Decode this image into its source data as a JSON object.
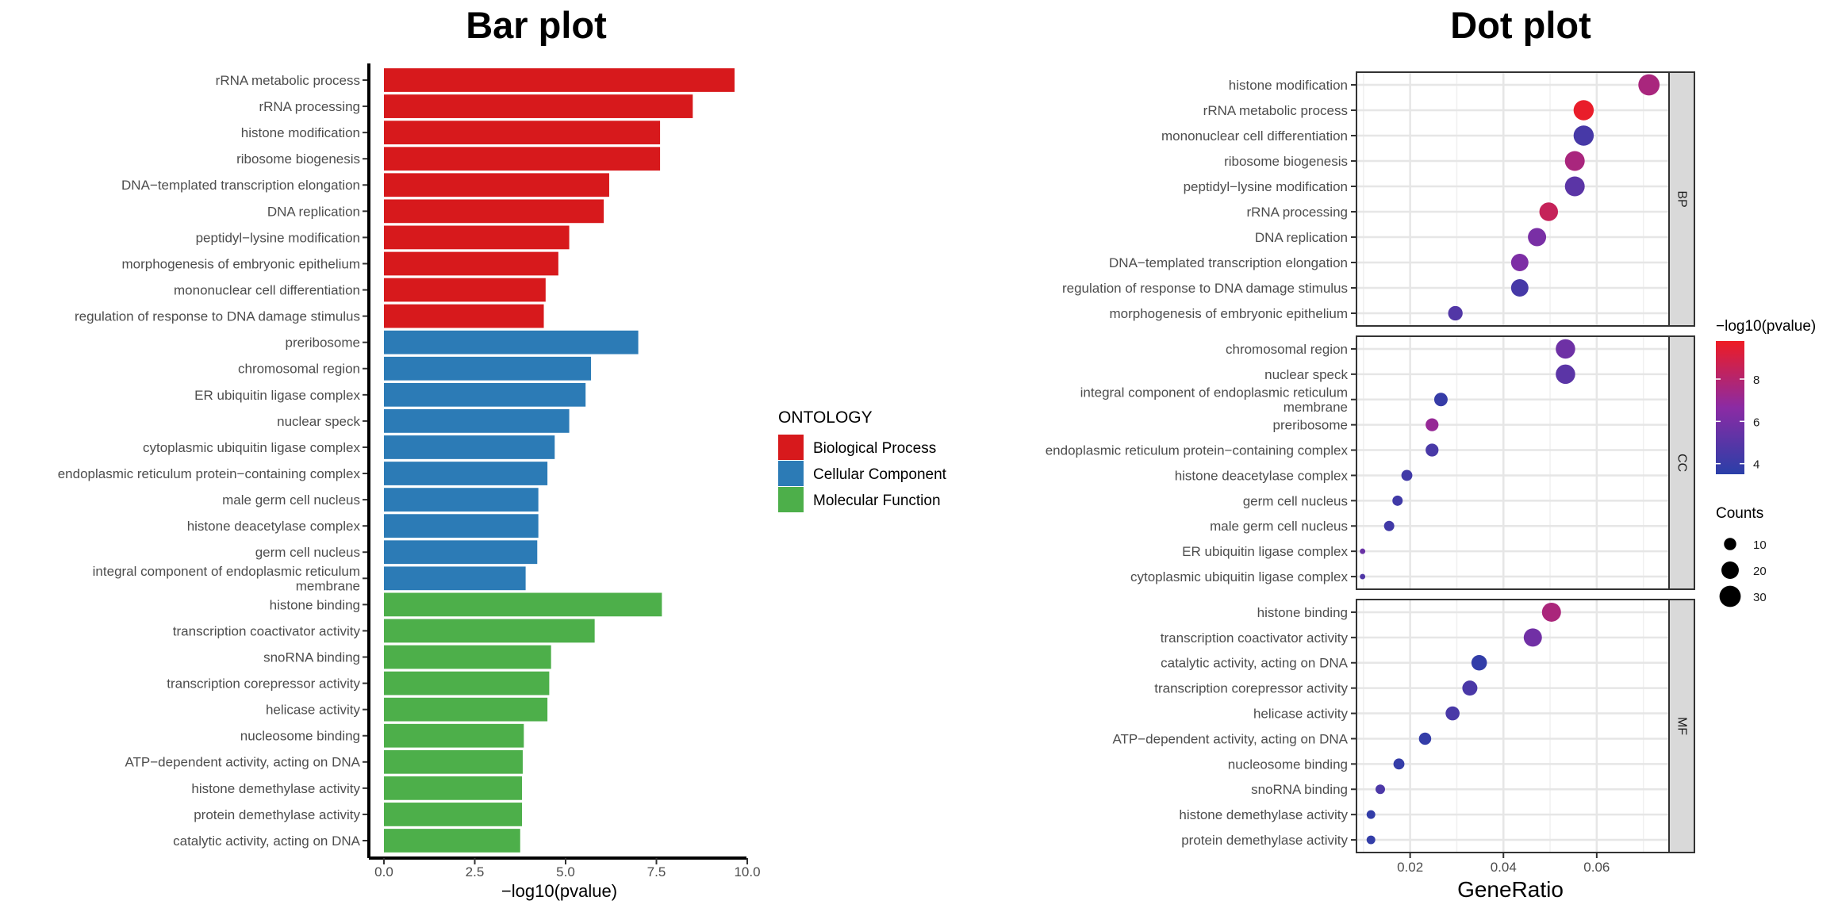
{
  "chart_data": [
    {
      "type": "bar",
      "orientation": "horizontal",
      "title": "Bar plot",
      "xlabel": "−log10(pvalue)",
      "ylabel": "",
      "xlim": [
        0,
        10
      ],
      "xticks": [
        "0.0",
        "2.5",
        "5.0",
        "7.5",
        "10.0"
      ],
      "legend": {
        "title": "ONTOLOGY",
        "placement": "right",
        "items": [
          {
            "name": "Biological Process",
            "color": "#D7191C"
          },
          {
            "name": "Cellular Component",
            "color": "#2C7BB6"
          },
          {
            "name": "Molecular Function",
            "color": "#4DAF4A"
          }
        ]
      },
      "series": [
        {
          "name": "Biological Process",
          "color": "#D7191C",
          "bars": [
            {
              "label": "rRNA metabolic process",
              "value": 9.65
            },
            {
              "label": "rRNA processing",
              "value": 8.5
            },
            {
              "label": "histone modification",
              "value": 7.6
            },
            {
              "label": "ribosome biogenesis",
              "value": 7.6
            },
            {
              "label": "DNA−templated transcription elongation",
              "value": 6.2
            },
            {
              "label": "DNA replication",
              "value": 6.05
            },
            {
              "label": "peptidyl−lysine modification",
              "value": 5.1
            },
            {
              "label": "morphogenesis of embryonic epithelium",
              "value": 4.8
            },
            {
              "label": "mononuclear cell differentiation",
              "value": 4.45
            },
            {
              "label": "regulation of response to DNA damage stimulus",
              "value": 4.4
            }
          ]
        },
        {
          "name": "Cellular Component",
          "color": "#2C7BB6",
          "bars": [
            {
              "label": "preribosome",
              "value": 7.0
            },
            {
              "label": "chromosomal region",
              "value": 5.7
            },
            {
              "label": "ER ubiquitin ligase complex",
              "value": 5.55
            },
            {
              "label": "nuclear speck",
              "value": 5.1
            },
            {
              "label": "cytoplasmic ubiquitin ligase complex",
              "value": 4.7
            },
            {
              "label": "endoplasmic reticulum protein−containing complex",
              "value": 4.5
            },
            {
              "label": "male germ cell nucleus",
              "value": 4.25
            },
            {
              "label": "histone deacetylase complex",
              "value": 4.25
            },
            {
              "label": "germ cell nucleus",
              "value": 4.22
            },
            {
              "label": "integral component of endoplasmic reticulum membrane",
              "value": 3.9
            }
          ]
        },
        {
          "name": "Molecular Function",
          "color": "#4DAF4A",
          "bars": [
            {
              "label": "histone binding",
              "value": 7.65
            },
            {
              "label": "transcription coactivator activity",
              "value": 5.8
            },
            {
              "label": "snoRNA binding",
              "value": 4.6
            },
            {
              "label": "transcription corepressor activity",
              "value": 4.55
            },
            {
              "label": "helicase activity",
              "value": 4.5
            },
            {
              "label": "nucleosome binding",
              "value": 3.85
            },
            {
              "label": "ATP−dependent activity, acting on DNA",
              "value": 3.82
            },
            {
              "label": "histone demethylase activity",
              "value": 3.8
            },
            {
              "label": "protein demethylase activity",
              "value": 3.8
            },
            {
              "label": "catalytic activity, acting on DNA",
              "value": 3.75
            }
          ]
        }
      ]
    },
    {
      "type": "scatter",
      "title": "Dot plot",
      "xlabel": "GeneRatio",
      "ylabel": "",
      "xlim": [
        0.0085,
        0.0755
      ],
      "xticks": [
        0.02,
        0.04,
        0.06
      ],
      "xtick_labels": [
        "0.02",
        "0.04",
        "0.06"
      ],
      "grid": true,
      "color_legend": {
        "title": "−log10(pvalue)",
        "range": [
          3.5,
          9.8
        ],
        "ticks": [
          "8",
          "6",
          "4"
        ],
        "low_color": "#2A3FA8",
        "mid_color": "#8B2BA4",
        "high_color": "#EE1C24"
      },
      "size_legend": {
        "title": "Counts",
        "ticks": [
          "10",
          "20",
          "30"
        ]
      },
      "facets": [
        {
          "name": "BP",
          "points": [
            {
              "label": "histone modification",
              "x": 0.0712,
              "count": 30,
              "pvalue_log": 7.6
            },
            {
              "label": "rRNA metabolic process",
              "x": 0.0572,
              "count": 27,
              "pvalue_log": 9.65
            },
            {
              "label": "mononuclear cell differentiation",
              "x": 0.0572,
              "count": 27,
              "pvalue_log": 4.45
            },
            {
              "label": "ribosome biogenesis",
              "x": 0.0553,
              "count": 26,
              "pvalue_log": 7.6
            },
            {
              "label": "peptidyl−lysine modification",
              "x": 0.0553,
              "count": 26,
              "pvalue_log": 5.1
            },
            {
              "label": "rRNA processing",
              "x": 0.0497,
              "count": 23,
              "pvalue_log": 8.5
            },
            {
              "label": "DNA replication",
              "x": 0.0472,
              "count": 22,
              "pvalue_log": 6.05
            },
            {
              "label": "DNA−templated transcription elongation",
              "x": 0.0435,
              "count": 20,
              "pvalue_log": 6.2
            },
            {
              "label": "regulation of response to DNA damage stimulus",
              "x": 0.0435,
              "count": 20,
              "pvalue_log": 4.4
            },
            {
              "label": "morphogenesis of embryonic epithelium",
              "x": 0.0297,
              "count": 14,
              "pvalue_log": 4.8
            }
          ]
        },
        {
          "name": "CC",
          "points": [
            {
              "label": "chromosomal region",
              "x": 0.0533,
              "count": 25,
              "pvalue_log": 5.7
            },
            {
              "label": "nuclear speck",
              "x": 0.0533,
              "count": 25,
              "pvalue_log": 5.1
            },
            {
              "label": "integral component of endoplasmic reticulum membrane",
              "x": 0.0266,
              "count": 12,
              "pvalue_log": 3.9
            },
            {
              "label": "preribosome",
              "x": 0.0247,
              "count": 11,
              "pvalue_log": 7.0
            },
            {
              "label": "endoplasmic reticulum protein−containing complex",
              "x": 0.0247,
              "count": 11,
              "pvalue_log": 4.5
            },
            {
              "label": "histone deacetylase complex",
              "x": 0.0193,
              "count": 8,
              "pvalue_log": 4.25
            },
            {
              "label": "germ cell nucleus",
              "x": 0.0173,
              "count": 7,
              "pvalue_log": 4.22
            },
            {
              "label": "male germ cell nucleus",
              "x": 0.0155,
              "count": 7,
              "pvalue_log": 4.25
            },
            {
              "label": "ER ubiquitin ligase complex",
              "x": 0.0098,
              "count": 2,
              "pvalue_log": 5.55
            },
            {
              "label": "cytoplasmic ubiquitin ligase complex",
              "x": 0.0098,
              "count": 2,
              "pvalue_log": 4.7
            }
          ]
        },
        {
          "name": "MF",
          "points": [
            {
              "label": "histone binding",
              "x": 0.0503,
              "count": 24,
              "pvalue_log": 7.65
            },
            {
              "label": "transcription coactivator activity",
              "x": 0.0463,
              "count": 22,
              "pvalue_log": 5.8
            },
            {
              "label": "catalytic activity, acting on DNA",
              "x": 0.0348,
              "count": 16,
              "pvalue_log": 3.75
            },
            {
              "label": "transcription corepressor activity",
              "x": 0.0328,
              "count": 15,
              "pvalue_log": 4.55
            },
            {
              "label": "helicase activity",
              "x": 0.0291,
              "count": 13,
              "pvalue_log": 4.5
            },
            {
              "label": "ATP−dependent activity, acting on DNA",
              "x": 0.0232,
              "count": 10,
              "pvalue_log": 3.82
            },
            {
              "label": "nucleosome binding",
              "x": 0.0176,
              "count": 8,
              "pvalue_log": 3.85
            },
            {
              "label": "snoRNA binding",
              "x": 0.0136,
              "count": 6,
              "pvalue_log": 4.6
            },
            {
              "label": "histone demethylase activity",
              "x": 0.0116,
              "count": 5,
              "pvalue_log": 3.8
            },
            {
              "label": "protein demethylase activity",
              "x": 0.0116,
              "count": 5,
              "pvalue_log": 3.8
            }
          ]
        }
      ]
    }
  ]
}
